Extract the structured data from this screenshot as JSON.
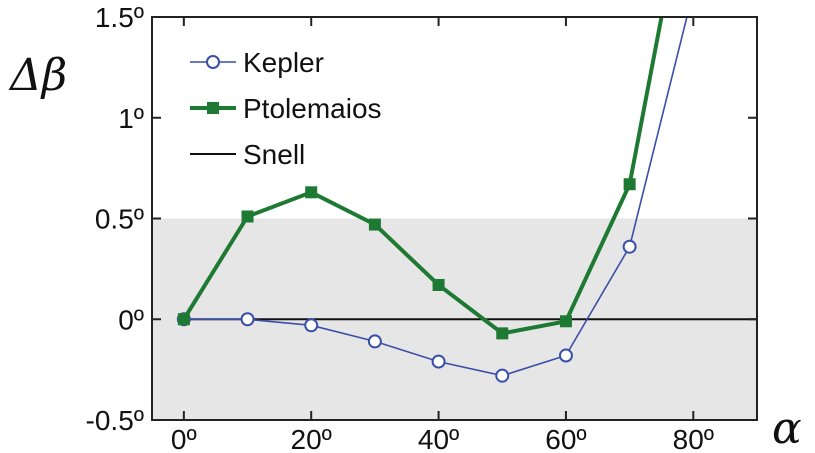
{
  "chart_data": {
    "type": "line",
    "title": "",
    "xlabel": "α",
    "ylabel": "Δβ",
    "xlim": [
      -5,
      90
    ],
    "ylim": [
      -0.5,
      1.5
    ],
    "x_ticks": [
      0,
      20,
      40,
      60,
      80
    ],
    "x_tick_labels": [
      "0º",
      "20º",
      "40º",
      "60º",
      "80º"
    ],
    "y_ticks": [
      1.5,
      1,
      0.5,
      0,
      -0.5
    ],
    "y_tick_labels": [
      "1.5º",
      "1º",
      "0.5º",
      "0º",
      "-0.5º"
    ],
    "shaded_band": {
      "from": -0.5,
      "to": 0.5,
      "color": "#e6e6e6"
    },
    "grid": false,
    "legend_position": "top-left",
    "series": [
      {
        "name": "Kepler",
        "color": "#3a4fa8",
        "marker": "open-circle",
        "x": [
          0,
          10,
          20,
          30,
          40,
          50,
          60,
          70,
          79
        ],
        "y": [
          0,
          0,
          -0.03,
          -0.11,
          -0.21,
          -0.28,
          -0.18,
          0.36,
          1.5
        ]
      },
      {
        "name": "Ptolemaios",
        "color": "#1e7a33",
        "marker": "filled-square",
        "x": [
          0,
          10,
          20,
          30,
          40,
          50,
          60,
          70,
          75
        ],
        "y": [
          0,
          0.51,
          0.63,
          0.47,
          0.17,
          -0.07,
          -0.01,
          0.67,
          1.5
        ]
      },
      {
        "name": "Snell",
        "color": "#111111",
        "marker": "none",
        "x": [
          0,
          90
        ],
        "y": [
          0,
          0
        ]
      }
    ]
  }
}
